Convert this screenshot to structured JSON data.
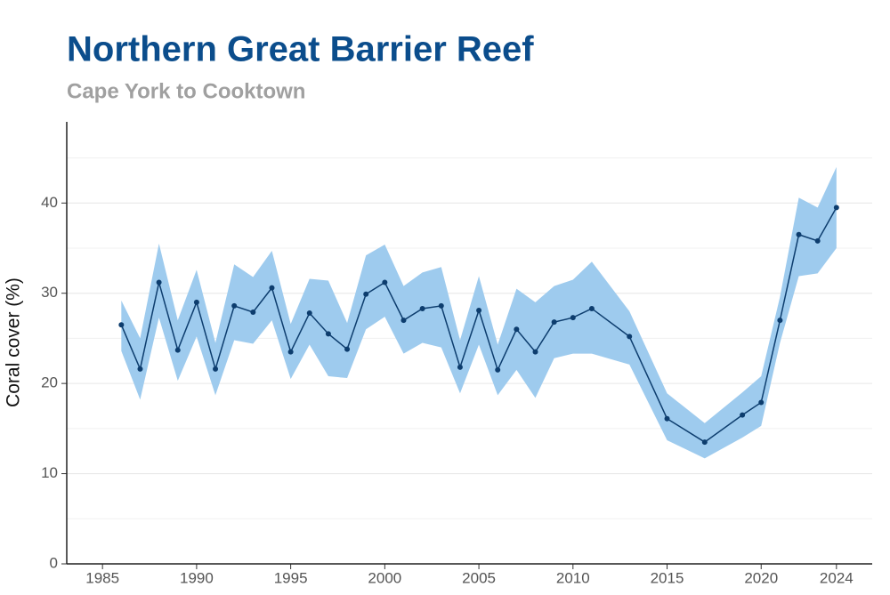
{
  "chart_data": {
    "type": "line",
    "title": "Northern Great Barrier Reef",
    "subtitle": "Cape York to Cooktown",
    "y_label": "Coral cover (%)",
    "x": [
      1986,
      1987,
      1988,
      1989,
      1990,
      1991,
      1992,
      1993,
      1994,
      1995,
      1996,
      1997,
      1998,
      1999,
      2000,
      2001,
      2002,
      2003,
      2004,
      2005,
      2006,
      2007,
      2008,
      2009,
      2010,
      2011,
      2013,
      2015,
      2017,
      2019,
      2020,
      2021,
      2022,
      2023,
      2024
    ],
    "values": [
      26.5,
      21.6,
      31.2,
      23.7,
      29.0,
      21.6,
      28.6,
      27.9,
      30.6,
      23.5,
      27.8,
      25.5,
      23.8,
      29.9,
      31.2,
      27.0,
      28.3,
      28.6,
      21.8,
      28.1,
      21.5,
      26.0,
      23.5,
      26.8,
      27.3,
      28.3,
      25.2,
      16.1,
      13.5,
      16.5,
      17.9,
      27.0,
      36.5,
      35.8,
      39.5
    ],
    "upper": [
      29.2,
      25.0,
      35.5,
      27.0,
      32.6,
      24.5,
      33.2,
      31.8,
      34.7,
      26.6,
      31.6,
      31.4,
      26.7,
      34.2,
      35.4,
      30.8,
      32.3,
      32.9,
      24.8,
      31.9,
      24.3,
      30.5,
      29.0,
      30.8,
      31.5,
      33.5,
      28.0,
      18.9,
      15.6,
      19.0,
      20.8,
      29.6,
      40.6,
      39.5,
      44.0
    ],
    "lower": [
      23.6,
      18.2,
      27.3,
      20.3,
      25.2,
      18.7,
      24.8,
      24.4,
      27.0,
      20.5,
      24.3,
      20.8,
      20.6,
      26.0,
      27.4,
      23.3,
      24.5,
      24.0,
      18.9,
      24.3,
      18.7,
      21.5,
      18.4,
      22.8,
      23.3,
      23.3,
      22.1,
      13.7,
      11.7,
      14.0,
      15.3,
      24.5,
      31.9,
      32.2,
      35.0
    ],
    "color": "#0d3d6e",
    "band_color": "#9ecbee",
    "xlim": [
      1983.1,
      2025.9
    ],
    "xticks": [
      1985,
      1990,
      1995,
      2000,
      2005,
      2010,
      2015,
      2020,
      2024
    ],
    "ylim": [
      0,
      49
    ],
    "yticks": [
      0,
      10,
      20,
      30,
      40
    ],
    "y_minor_ticks": [
      5,
      15,
      25,
      35,
      45
    ],
    "grid": true
  }
}
